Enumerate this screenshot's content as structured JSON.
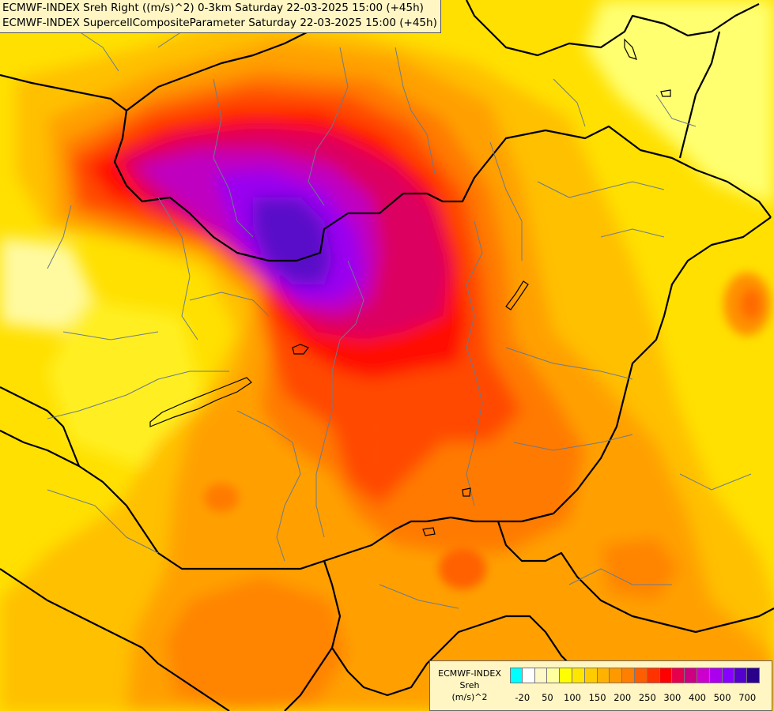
{
  "header": {
    "line1": "ECMWF-INDEX Sreh Right ((m/s)^2) 0-3km Saturday 22-03-2025 15:00 (+45h)",
    "line2": "ECMWF-INDEX SupercellCompositeParameter Saturday 22-03-2025 15:00 (+45h)"
  },
  "legend": {
    "line1": "ECMWF-INDEX",
    "line2": "Sreh",
    "line3": "(m/s)^2",
    "colors": [
      "#00ffff",
      "#ffffff",
      "#fff8c8",
      "#ffffa0",
      "#ffff00",
      "#ffe600",
      "#ffcc00",
      "#ffb300",
      "#ff9900",
      "#ff7f00",
      "#ff5e00",
      "#ff3300",
      "#ff0000",
      "#e6004c",
      "#cc0080",
      "#cc00cc",
      "#aa00ee",
      "#8800ff",
      "#5500cc",
      "#2a008a"
    ],
    "ticks": [
      "-20",
      "50",
      "100",
      "150",
      "200",
      "250",
      "300",
      "400",
      "500",
      "700"
    ]
  },
  "map_colors": {
    "yellow": "#ffe800",
    "yellow_light": "#ffff60",
    "orange_light": "#ffcc00",
    "orange": "#ffa800",
    "orange_dark": "#ff8000",
    "red_orange": "#ff4000",
    "red": "#ff0000",
    "magenta": "#d4007a",
    "purple": "#b000d0",
    "violet": "#8a00ff",
    "indigo": "#5a10c8"
  }
}
